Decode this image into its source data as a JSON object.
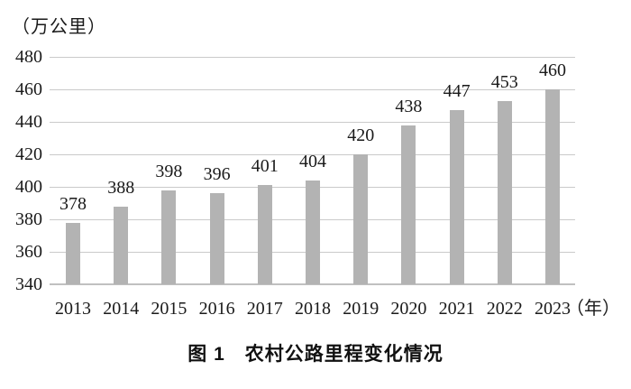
{
  "chart_data": {
    "type": "bar",
    "title": "图 1　农村公路里程变化情况",
    "y_unit_label": "（万公里）",
    "x_unit_label": "（年）",
    "categories": [
      "2013",
      "2014",
      "2015",
      "2016",
      "2017",
      "2018",
      "2019",
      "2020",
      "2021",
      "2022",
      "2023"
    ],
    "values": [
      378,
      388,
      398,
      396,
      401,
      404,
      420,
      438,
      447,
      453,
      460
    ],
    "yticks": [
      340,
      360,
      380,
      400,
      420,
      440,
      460,
      480
    ],
    "ylim": [
      340,
      480
    ],
    "grid": true,
    "legend": "none",
    "bar_color": "#b3b3b3",
    "grid_color": "#cacaca",
    "axis_color": "#c0c0c0",
    "text_color": "#1a1a1a"
  }
}
